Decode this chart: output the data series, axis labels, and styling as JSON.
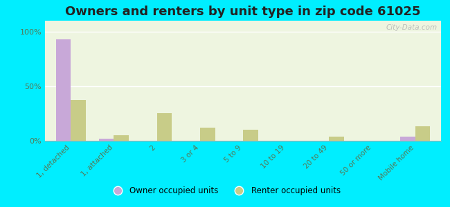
{
  "title": "Owners and renters by unit type in zip code 61025",
  "categories": [
    "1, detached",
    "1, attached",
    "2",
    "3 or 4",
    "5 to 9",
    "10 to 19",
    "20 to 49",
    "50 or more",
    "Mobile home"
  ],
  "owner_values": [
    93,
    2,
    0,
    0,
    0,
    0,
    0,
    0,
    4
  ],
  "renter_values": [
    37,
    5,
    25,
    12,
    10,
    0,
    4,
    0,
    13
  ],
  "owner_color": "#c8a8d8",
  "renter_color": "#c8cc88",
  "plot_bg_color": "#eef5e0",
  "bg_outer": "#00eeff",
  "yticks": [
    0,
    50,
    100
  ],
  "ylabels": [
    "0%",
    "50%",
    "100%"
  ],
  "ylim": [
    0,
    110
  ],
  "watermark": "City-Data.com",
  "legend_owner": "Owner occupied units",
  "legend_renter": "Renter occupied units",
  "title_fontsize": 13,
  "bar_width": 0.35,
  "tick_color": "#557755"
}
